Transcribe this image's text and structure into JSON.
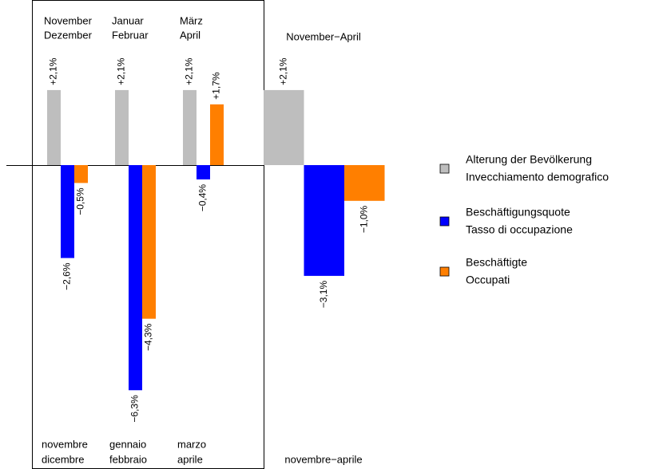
{
  "chart_data": {
    "type": "bar",
    "categories": [
      [
        "November",
        "Dezember"
      ],
      [
        "Januar",
        "Februar"
      ],
      [
        "März",
        "April"
      ],
      [
        "November−April"
      ]
    ],
    "categories_it": [
      [
        "novembre",
        "dicembre"
      ],
      [
        "gennaio",
        "febbraio"
      ],
      [
        "marzo",
        "aprile"
      ],
      [
        "novembre−aprile"
      ]
    ],
    "series": [
      {
        "name": [
          "Alterung der Bevölkerung",
          "Invecchiamento demografico"
        ],
        "color": "#bebebe",
        "values": [
          2.1,
          2.1,
          2.1,
          2.1
        ],
        "value_labels": [
          "+2,1%",
          "+2,1%",
          "+2,1%",
          "+2,1%"
        ]
      },
      {
        "name": [
          "Beschäftigungsquote",
          "Tasso di occupazione"
        ],
        "color": "#0000ff",
        "values": [
          -2.6,
          -6.3,
          -0.4,
          -3.1
        ],
        "value_labels": [
          "−2,6%",
          "−6,3%",
          "−0,4%",
          "−3,1%"
        ]
      },
      {
        "name": [
          "Beschäftigte",
          "Occupati"
        ],
        "color": "#ff7f00",
        "values": [
          -0.5,
          -4.3,
          1.7,
          -1.0
        ],
        "value_labels": [
          "−0,5%",
          "−4,3%",
          "+1,7%",
          "−1,0%"
        ]
      }
    ]
  }
}
